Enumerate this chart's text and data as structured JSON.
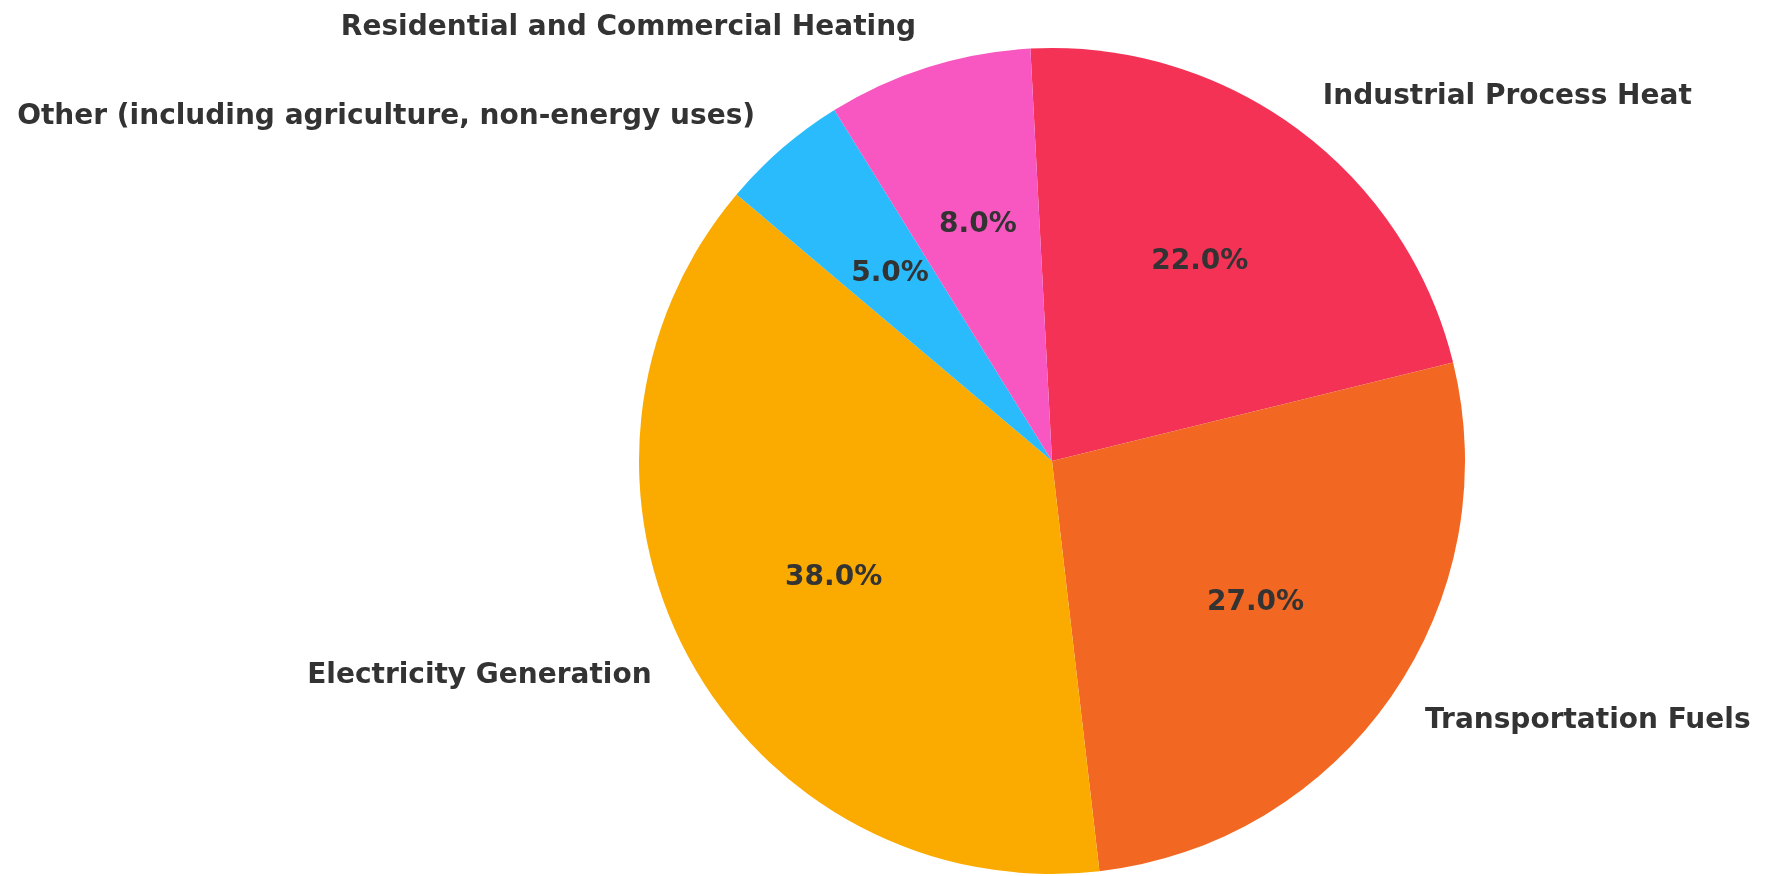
{
  "chart_data": {
    "type": "pie",
    "categories": [
      "Industrial Process Heat",
      "Transportation Fuels",
      "Electricity Generation",
      "Other (including agriculture, non-energy uses)",
      "Residential and Commercial Heating"
    ],
    "values": [
      22,
      27,
      38,
      5,
      8
    ],
    "colors": [
      "#f43256",
      "#f26722",
      "#fbab00",
      "#29bbfb",
      "#f857c1"
    ],
    "value_labels": [
      "22.0%",
      "27.0%",
      "38.0%",
      "5.0%",
      "8.0%"
    ],
    "legend": false
  }
}
